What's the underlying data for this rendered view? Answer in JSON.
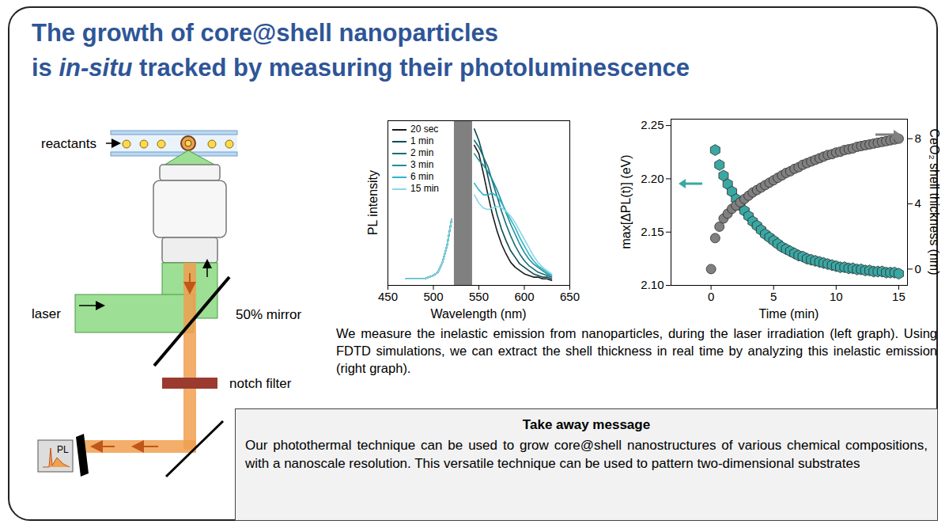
{
  "title_lines": [
    [
      {
        "text": "The growth of core@shell nanoparticles"
      }
    ],
    [
      {
        "text": "is "
      },
      {
        "text": "in-situ",
        "style": "italic"
      },
      {
        "text": " tracked by measuring their photoluminescence"
      }
    ]
  ],
  "diagram": {
    "labels": {
      "reactants": "reactants",
      "laser": "laser",
      "mirror": "50% mirror",
      "filter": "notch filter",
      "detector": "PL"
    }
  },
  "chart_data": [
    {
      "type": "line",
      "x_label": "Wavelength (nm)",
      "y_label": "PL intensity",
      "x": [
        470,
        480,
        490,
        500,
        505,
        510,
        515,
        520,
        530,
        545,
        550,
        555,
        560,
        565,
        570,
        575,
        580,
        585,
        590,
        595,
        600,
        605,
        610,
        615,
        620,
        625,
        630
      ],
      "series": [
        {
          "name": "20 sec",
          "color": "#1a1a1a",
          "values": [
            4,
            4,
            4,
            6,
            8,
            14,
            24,
            40,
            null,
            85,
            80,
            68,
            55,
            43,
            33,
            25,
            19,
            14,
            11,
            9,
            7,
            6,
            5,
            5,
            4,
            4,
            3
          ]
        },
        {
          "name": "1 min",
          "color": "#0d4d55",
          "values": [
            4,
            4,
            4,
            6,
            8,
            14,
            24,
            40,
            null,
            95,
            88,
            78,
            66,
            54,
            43,
            34,
            27,
            21,
            17,
            13,
            11,
            9,
            7,
            6,
            5,
            5,
            4
          ]
        },
        {
          "name": "2 min",
          "color": "#176d78",
          "values": [
            4,
            4,
            4,
            6,
            8,
            14,
            24,
            40,
            null,
            88,
            84,
            78,
            72,
            63,
            54,
            45,
            37,
            30,
            24,
            19,
            15,
            12,
            10,
            8,
            7,
            6,
            5
          ]
        },
        {
          "name": "3 min",
          "color": "#1f8f9c",
          "values": [
            4,
            4,
            4,
            6,
            8,
            14,
            24,
            40,
            null,
            80,
            76,
            73,
            69,
            64,
            58,
            51,
            44,
            37,
            31,
            25,
            20,
            16,
            13,
            11,
            9,
            7,
            6
          ]
        },
        {
          "name": "6 min",
          "color": "#2fb5c8",
          "values": [
            4,
            4,
            4,
            6,
            8,
            14,
            24,
            40,
            null,
            62,
            58,
            55,
            55,
            56,
            54,
            50,
            45,
            40,
            35,
            29,
            24,
            19,
            15,
            12,
            10,
            8,
            6
          ]
        },
        {
          "name": "15 min",
          "color": "#8ad8e6",
          "values": [
            4,
            4,
            4,
            6,
            8,
            14,
            24,
            40,
            null,
            55,
            50,
            47,
            46,
            47,
            48,
            47,
            45,
            42,
            38,
            33,
            28,
            23,
            18,
            14,
            11,
            9,
            7
          ]
        }
      ],
      "xlim": [
        450,
        650
      ],
      "xticks": [
        450,
        500,
        550,
        600,
        650
      ],
      "ylim": [
        0,
        100
      ],
      "yticks": [],
      "tick_labels": "x",
      "grid": false,
      "legend": "upper left",
      "band": {
        "range": [
          523,
          543
        ],
        "color": "#808080"
      }
    },
    {
      "type": "scatter",
      "x_label": "Time (min)",
      "y_label": "max[ΔPL(t)] (eV)",
      "y2_label": "CeO₂ shell thickness (nm)",
      "xlim": [
        -3.2,
        15.7
      ],
      "xticks": [
        0,
        5,
        10,
        15
      ],
      "ylim": [
        2.1,
        2.256
      ],
      "yticks": [
        {
          "value": 2.1,
          "label": "2.10"
        },
        2.15,
        {
          "value": 2.2,
          "label": "2.20"
        },
        2.25
      ],
      "y2lim": [
        -1,
        9.2
      ],
      "y2ticks": [
        0,
        4,
        8
      ],
      "grid": false,
      "series": [
        {
          "color": "#3aa7a3",
          "marker": "hexagon",
          "x": [
            0.33,
            0.67,
            1,
            1.33,
            1.67,
            2,
            2.33,
            2.67,
            3,
            3.33,
            3.67,
            4,
            4.33,
            4.67,
            5,
            5.33,
            5.67,
            6,
            6.33,
            6.67,
            7,
            7.33,
            7.67,
            8,
            8.33,
            8.67,
            9,
            9.33,
            9.67,
            10,
            10.33,
            10.67,
            11,
            11.33,
            11.67,
            12,
            12.33,
            12.67,
            13,
            13.33,
            13.67,
            14,
            14.33,
            14.67,
            15
          ],
          "values": [
            2.227,
            2.213,
            2.203,
            2.195,
            2.188,
            2.181,
            2.175,
            2.17,
            2.165,
            2.16,
            2.156,
            2.152,
            2.148,
            2.145,
            2.142,
            2.139,
            2.136,
            2.134,
            2.132,
            2.13,
            2.128,
            2.127,
            2.125,
            2.124,
            2.123,
            2.122,
            2.121,
            2.12,
            2.119,
            2.118,
            2.117,
            2.117,
            2.116,
            2.116,
            2.115,
            2.115,
            2.114,
            2.114,
            2.113,
            2.113,
            2.113,
            2.112,
            2.112,
            2.112,
            2.111
          ]
        },
        {
          "color": "#808080",
          "marker": "circle",
          "axis": "y2",
          "x": [
            0,
            0.33,
            0.67,
            1,
            1.33,
            1.67,
            2,
            2.33,
            2.67,
            3,
            3.33,
            3.67,
            4,
            4.33,
            4.67,
            5,
            5.33,
            5.67,
            6,
            6.33,
            6.67,
            7,
            7.33,
            7.67,
            8,
            8.33,
            8.67,
            9,
            9.33,
            9.67,
            10,
            10.33,
            10.67,
            11,
            11.33,
            11.67,
            12,
            12.33,
            12.67,
            13,
            13.33,
            13.67,
            14,
            14.33,
            14.67,
            15
          ],
          "values": [
            0,
            1.9,
            2.6,
            3.1,
            3.4,
            3.7,
            3.9,
            4.1,
            4.3,
            4.5,
            4.7,
            4.85,
            5.0,
            5.15,
            5.3,
            5.45,
            5.6,
            5.75,
            5.9,
            6.0,
            6.15,
            6.25,
            6.4,
            6.5,
            6.6,
            6.7,
            6.8,
            6.9,
            7.0,
            7.05,
            7.15,
            7.2,
            7.3,
            7.35,
            7.4,
            7.5,
            7.55,
            7.6,
            7.65,
            7.7,
            7.75,
            7.8,
            7.85,
            7.9,
            7.95,
            8.0
          ]
        }
      ]
    }
  ],
  "caption": "We measure the inelastic emission from nanoparticles, during the laser irradiation (left graph). Using FDTD simulations, we can extract the shell thickness in real time by analyzing this inelastic emission (right graph).",
  "takeaway": {
    "title": "Take away message",
    "text": "Our photothermal technique can be used to grow core@shell nanostructures of various chemical compositions, with a nanoscale resolution. This versatile technique can be used to pattern two-dimensional substrates"
  }
}
